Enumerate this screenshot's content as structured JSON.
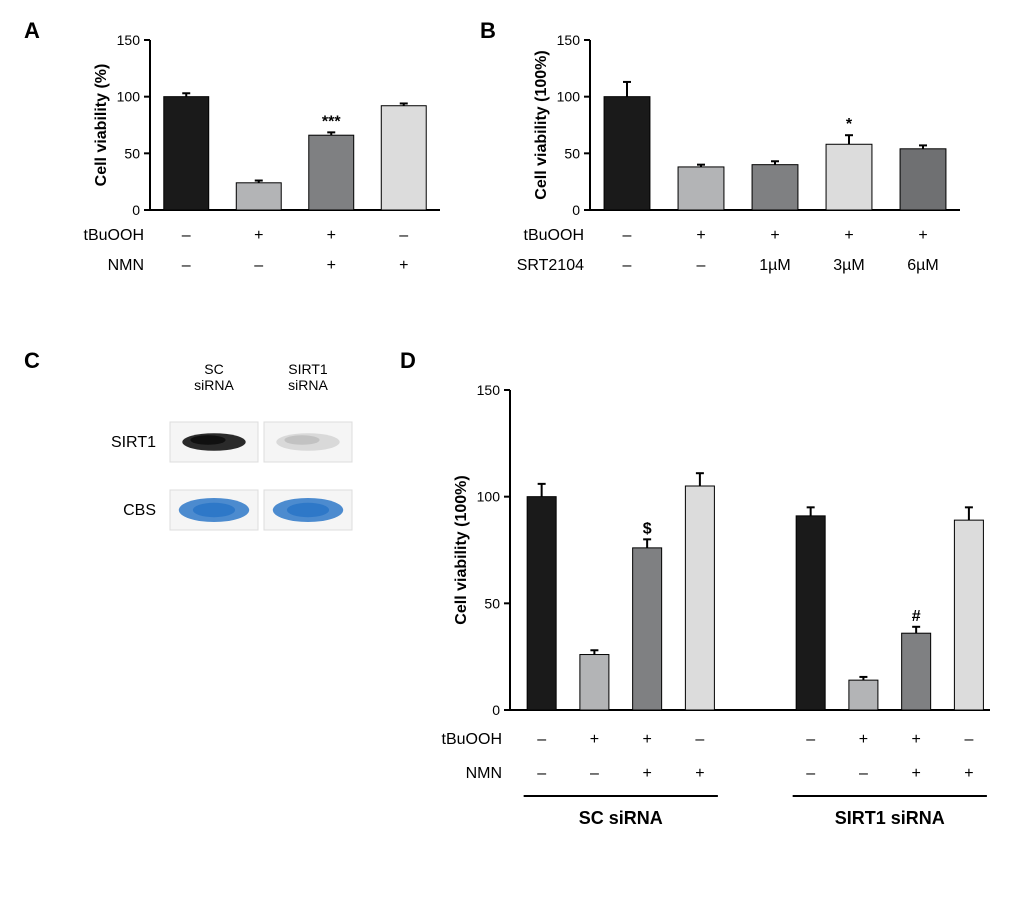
{
  "background_color": "#ffffff",
  "axis_color": "#000000",
  "tick_len": 6,
  "bar_stroke": "#000000",
  "bar_stroke_width": 1,
  "err_color": "#000000",
  "err_width": 2,
  "err_cap": 8,
  "panels": {
    "A": {
      "label": "A",
      "ylabel": "Cell viability (%)",
      "ylim": [
        0,
        150
      ],
      "ytick_step": 50,
      "bar_colors": [
        "#1a1a1a",
        "#b3b4b6",
        "#7f8082",
        "#dcdcdc"
      ],
      "values": [
        100,
        24,
        66,
        92
      ],
      "errors": [
        3,
        2,
        2.5,
        2
      ],
      "sig": [
        "",
        "",
        "***",
        ""
      ],
      "rows": [
        {
          "name": "tBuOOH",
          "vals": [
            "–",
            "+",
            "+",
            "–"
          ]
        },
        {
          "name": "NMN",
          "vals": [
            "–",
            "–",
            "+",
            "+"
          ]
        }
      ],
      "bar_width": 0.62,
      "ylabel_fontsize": 16,
      "tick_fontsize": 14
    },
    "B": {
      "label": "B",
      "ylabel": "Cell viability (100%)",
      "ylim": [
        0,
        150
      ],
      "ytick_step": 50,
      "bar_colors": [
        "#1a1a1a",
        "#b3b4b6",
        "#7f8082",
        "#dcdcdc",
        "#6f7072"
      ],
      "values": [
        100,
        38,
        40,
        58,
        54
      ],
      "errors": [
        13,
        2,
        3,
        8,
        3
      ],
      "sig": [
        "",
        "",
        "",
        "*",
        ""
      ],
      "rows": [
        {
          "name": "tBuOOH",
          "vals": [
            "–",
            "+",
            "+",
            "+",
            "+"
          ]
        },
        {
          "name": "SRT2104",
          "vals": [
            "–",
            "–",
            "1µM",
            "3µM",
            "6µM"
          ]
        }
      ],
      "bar_width": 0.62
    },
    "C": {
      "label": "C",
      "headers": [
        "SC\nsiRNA",
        "SIRT1\nsiRNA"
      ],
      "row_labels": [
        "SIRT1",
        "CBS"
      ],
      "lane_bg": "#f5f5f5",
      "cbs_color": "#2e78c8",
      "sirt1_intensity": [
        0.9,
        0.12
      ]
    },
    "D": {
      "label": "D",
      "ylabel": "Cell viability (100%)",
      "ylim": [
        0,
        150
      ],
      "ytick_step": 50,
      "bar_colors": [
        "#1a1a1a",
        "#b3b4b6",
        "#7f8082",
        "#dcdcdc",
        "#1a1a1a",
        "#b3b4b6",
        "#7f8082",
        "#dcdcdc"
      ],
      "values": [
        100,
        26,
        76,
        105,
        91,
        14,
        36,
        89
      ],
      "errors": [
        6,
        2,
        4,
        6,
        4,
        1.5,
        3,
        6
      ],
      "sig": [
        "",
        "",
        "$",
        "",
        "",
        "",
        "#",
        ""
      ],
      "rows": [
        {
          "name": "tBuOOH",
          "vals": [
            "–",
            "+",
            "+",
            "–",
            "–",
            "+",
            "+",
            "–"
          ]
        },
        {
          "name": "NMN",
          "vals": [
            "–",
            "–",
            "+",
            "+",
            "–",
            "–",
            "+",
            "+"
          ]
        }
      ],
      "groups": [
        {
          "label": "SC siRNA",
          "span": [
            0,
            3
          ]
        },
        {
          "label": "SIRT1 siRNA",
          "span": [
            4,
            7
          ]
        }
      ],
      "bar_width": 0.55,
      "group_gap": 1.1
    }
  }
}
